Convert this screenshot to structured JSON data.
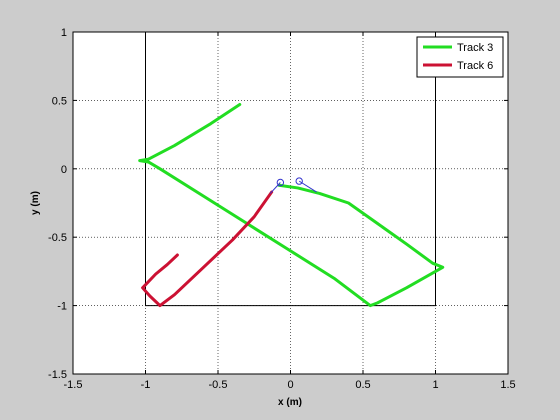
{
  "chart_data": {
    "type": "line",
    "title": "",
    "xlabel": "x (m)",
    "ylabel": "y (m)",
    "xlim": [
      -1.5,
      1.5
    ],
    "ylim": [
      -1.5,
      1
    ],
    "xticks": [
      -1.5,
      -1,
      -0.5,
      0,
      0.5,
      1,
      1.5
    ],
    "xtick_labels": [
      "-1.5",
      "-1",
      "-0.5",
      "0",
      "0.5",
      "1",
      "1.5"
    ],
    "yticks": [
      -1.5,
      -1,
      -0.5,
      0,
      0.5,
      1
    ],
    "ytick_labels": [
      "-1.5",
      "-1",
      "-0.5",
      "0",
      "0.5",
      "1"
    ],
    "grid": true,
    "legend_position": "top-right",
    "boundary": {
      "color": "#000000",
      "points": [
        [
          -1,
          1
        ],
        [
          1,
          1
        ],
        [
          1,
          -1
        ],
        [
          -1,
          -1
        ],
        [
          -1,
          1
        ]
      ]
    },
    "series": [
      {
        "name": "Track 3",
        "color": "#22dd22",
        "points": [
          [
            -0.35,
            0.47
          ],
          [
            -0.55,
            0.33
          ],
          [
            -0.8,
            0.17
          ],
          [
            -0.98,
            0.07
          ],
          [
            -1.04,
            0.06
          ],
          [
            -0.98,
            0.05
          ],
          [
            -0.9,
            0.0
          ],
          [
            -0.6,
            -0.2
          ],
          [
            -0.3,
            -0.4
          ],
          [
            0.0,
            -0.6
          ],
          [
            0.3,
            -0.8
          ],
          [
            0.55,
            -1.0
          ],
          [
            0.6,
            -0.98
          ],
          [
            0.8,
            -0.87
          ],
          [
            1.05,
            -0.72
          ],
          [
            0.98,
            -0.69
          ],
          [
            0.8,
            -0.55
          ],
          [
            0.6,
            -0.4
          ],
          [
            0.4,
            -0.25
          ],
          [
            0.2,
            -0.18
          ],
          [
            0.05,
            -0.14
          ],
          [
            -0.08,
            -0.12
          ]
        ]
      },
      {
        "name": "Track 6",
        "color": "#cc1133",
        "points": [
          [
            -0.78,
            -0.63
          ],
          [
            -0.85,
            -0.7
          ],
          [
            -0.93,
            -0.77
          ],
          [
            -1.02,
            -0.87
          ],
          [
            -0.97,
            -0.93
          ],
          [
            -0.9,
            -1.0
          ],
          [
            -0.8,
            -0.92
          ],
          [
            -0.6,
            -0.72
          ],
          [
            -0.4,
            -0.52
          ],
          [
            -0.25,
            -0.35
          ],
          [
            -0.13,
            -0.17
          ]
        ]
      }
    ],
    "markers": [
      {
        "color": "#3333cc",
        "point": [
          -0.07,
          -0.1
        ],
        "tail": [
          -0.14,
          -0.18
        ]
      },
      {
        "color": "#3333cc",
        "point": [
          0.06,
          -0.09
        ],
        "tail": [
          0.18,
          -0.17
        ]
      }
    ]
  }
}
